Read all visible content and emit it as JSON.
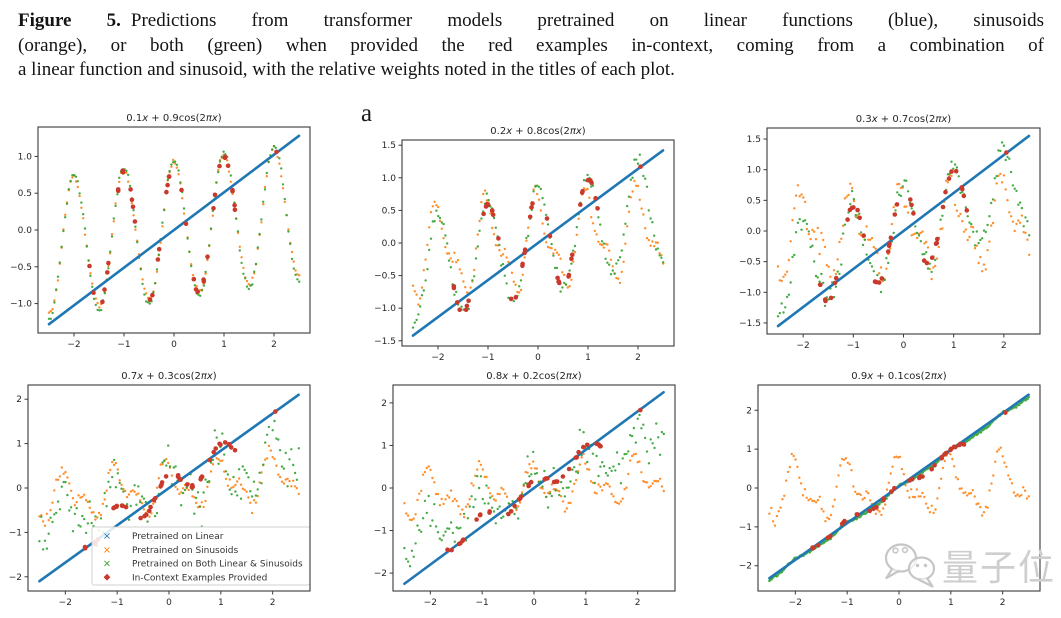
{
  "figure_caption": {
    "label": "Figure 5.",
    "lines": [
      "Predictions from transformer models pretrained on linear functions (blue), sinusoids",
      "(orange), or both (green) when provided the red examples in-context, coming from a combination of",
      "a linear function and sinusoid, with the relative weights noted in the titles of each plot."
    ]
  },
  "panel_label": "a",
  "watermark": {
    "text": "量子位",
    "icon": "wechat-speech-bubbles-icon",
    "color": "#cecece"
  },
  "chart_data": {
    "type": "scatter",
    "grid": {
      "rows": 2,
      "cols": 3
    },
    "axes": {
      "xlim": [
        -2.72,
        2.72
      ],
      "xticks": [
        -2,
        -1,
        0,
        1,
        2
      ],
      "xtick_labels": [
        "−2",
        "−1",
        "0",
        "1",
        "2"
      ],
      "grid_lines": false
    },
    "colors": {
      "blue": "#1f77b4",
      "orange": "#ff7f0e",
      "green": "#2ca02c",
      "red": "#c9392c",
      "axis": "#3a3a3a",
      "text": "#262626"
    },
    "legend": {
      "position": "inside bottom-left subplot (0.7x + 0.3cos(2πx)), lower area",
      "entries": [
        {
          "label": "Pretrained on Linear",
          "color": "#1f77b4",
          "marker": "x"
        },
        {
          "label": "Pretrained on Sinusoids",
          "color": "#ff7f0e",
          "marker": "x"
        },
        {
          "label": "Pretrained on Both Linear & Sinusoids",
          "color": "#2ca02c",
          "marker": "x"
        },
        {
          "label": "In-Context Examples Provided",
          "color": "#c9392c",
          "marker": "diamond"
        }
      ]
    },
    "plots": [
      {
        "title": "0.1x + 0.9cos(2πx)",
        "target": {
          "linear_weight": 0.1,
          "cosine_weight": 0.9
        },
        "ylim": [
          -1.4,
          1.4
        ],
        "yticks": [
          1.0,
          0.5,
          0.0,
          -0.5,
          -1.0
        ],
        "ytick_decimals": 1,
        "blue_line": {
          "x": [
            -2.5,
            2.5
          ],
          "y": [
            -1.28,
            1.28
          ]
        },
        "orange": {
          "lin": 0.1,
          "amp": 0.9,
          "amp2": 0.04,
          "ph2": 1.0,
          "noise": 0.03
        },
        "green": {
          "lin": 0.1,
          "amp": 0.95,
          "amp2": 0.0,
          "ph2": 0.5,
          "noise": 0.03
        },
        "red": {
          "lin": 0.1,
          "amp": 0.9
        },
        "has_legend": false,
        "seed": 11
      },
      {
        "title": "0.2x + 0.8cos(2πx)",
        "target": {
          "linear_weight": 0.2,
          "cosine_weight": 0.8
        },
        "ylim": [
          -1.58,
          1.58
        ],
        "yticks": [
          1.5,
          1.0,
          0.5,
          0.0,
          -0.5,
          -1.0,
          -1.5
        ],
        "ytick_decimals": 1,
        "blue_line": {
          "x": [
            -2.5,
            2.5
          ],
          "y": [
            -1.42,
            1.42
          ]
        },
        "orange": {
          "lin": 0.06,
          "amp": 0.58,
          "amp2": 0.3,
          "ph2": 1.2,
          "noise": 0.07
        },
        "green": {
          "lin": 0.2,
          "amp": 0.82,
          "amp2": 0.05,
          "ph2": 0.5,
          "noise": 0.09
        },
        "red": {
          "lin": 0.2,
          "amp": 0.8
        },
        "has_legend": false,
        "seed": 22
      },
      {
        "title": "0.3x + 0.7cos(2πx)",
        "target": {
          "linear_weight": 0.3,
          "cosine_weight": 0.7
        },
        "ylim": [
          -1.68,
          1.68
        ],
        "yticks": [
          1.5,
          1.0,
          0.5,
          0.0,
          -0.5,
          -1.0,
          -1.5
        ],
        "ytick_decimals": 1,
        "blue_line": {
          "x": [
            -2.5,
            2.5
          ],
          "y": [
            -1.55,
            1.55
          ]
        },
        "orange": {
          "lin": 0.06,
          "amp": 0.55,
          "amp2": 0.3,
          "ph2": 1.4,
          "noise": 0.15
        },
        "green": {
          "lin": 0.3,
          "amp": 0.72,
          "amp2": 0.08,
          "ph2": 0.6,
          "noise": 0.16
        },
        "red": {
          "lin": 0.3,
          "amp": 0.7
        },
        "has_legend": false,
        "seed": 33
      },
      {
        "title": "0.7x + 0.3cos(2πx)",
        "target": {
          "linear_weight": 0.7,
          "cosine_weight": 0.3
        },
        "ylim": [
          -2.32,
          2.32
        ],
        "yticks": [
          2,
          1,
          0,
          -1,
          -2
        ],
        "ytick_decimals": 0,
        "blue_line": {
          "x": [
            -2.5,
            2.5
          ],
          "y": [
            -2.1,
            2.1
          ]
        },
        "orange": {
          "lin": 0.1,
          "amp": 0.42,
          "amp2": 0.26,
          "ph2": 1.2,
          "noise": 0.13
        },
        "green": {
          "lin": 0.3,
          "amp": 0.45,
          "amp2": 0.3,
          "ph2": 0.8,
          "noise": 0.45
        },
        "red": {
          "lin": 0.7,
          "amp": 0.3
        },
        "has_legend": true,
        "seed": 44
      },
      {
        "title": "0.8x + 0.2cos(2πx)",
        "target": {
          "linear_weight": 0.8,
          "cosine_weight": 0.2
        },
        "ylim": [
          -2.42,
          2.42
        ],
        "yticks": [
          2,
          1,
          0,
          -1,
          -2
        ],
        "ytick_decimals": 0,
        "blue_line": {
          "x": [
            -2.5,
            2.5
          ],
          "y": [
            -2.25,
            2.25
          ]
        },
        "orange": {
          "lin": 0.08,
          "amp": 0.38,
          "amp2": 0.28,
          "ph2": 1.0,
          "noise": 0.12
        },
        "green": {
          "lin": 0.5,
          "amp": 0.35,
          "amp2": 0.2,
          "ph2": 0.7,
          "noise": 0.35
        },
        "red": {
          "lin": 0.8,
          "amp": 0.2
        },
        "has_legend": false,
        "seed": 55
      },
      {
        "title": "0.9x + 0.1cos(2πx)",
        "target": {
          "linear_weight": 0.9,
          "cosine_weight": 0.1
        },
        "ylim": [
          -2.65,
          2.65
        ],
        "yticks": [
          2,
          1,
          0,
          -1,
          -2
        ],
        "ytick_decimals": 0,
        "blue_line": {
          "x": [
            -2.5,
            2.5
          ],
          "y": [
            -2.32,
            2.4
          ]
        },
        "orange": {
          "lin": 0.05,
          "amp": 0.58,
          "amp2": 0.34,
          "ph2": 0.9,
          "noise": 0.13
        },
        "green": {
          "lin": 0.94,
          "amp": 0.04,
          "amp2": 0.02,
          "ph2": 0.5,
          "noise": 0.025,
          "dense": true
        },
        "red": {
          "lin": 0.9,
          "amp": 0.1
        },
        "has_legend": false,
        "seed": 66
      }
    ]
  }
}
